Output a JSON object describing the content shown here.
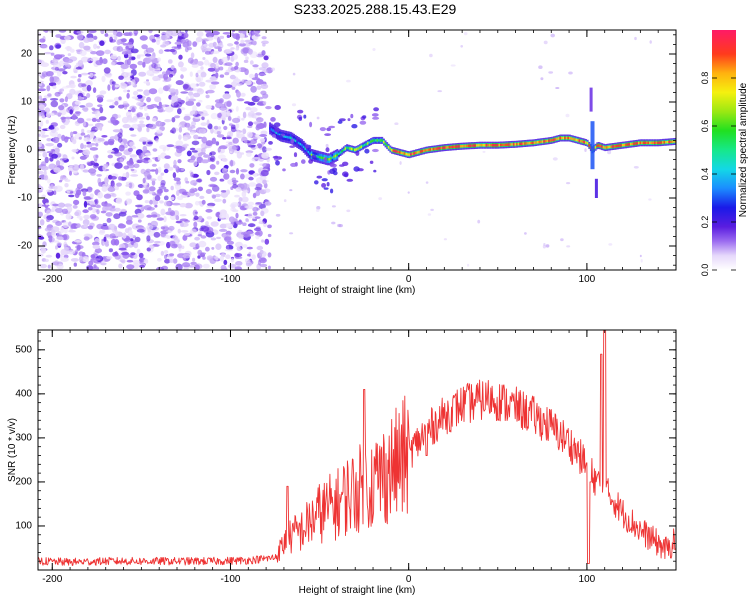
{
  "title": "S233.2025.288.15.43.E29",
  "colors": {
    "signal_line": "#ee3333",
    "speckle": "#7a2ee8",
    "frame": "#000000"
  },
  "chart_data": [
    {
      "type": "heatmap",
      "name": "spectrogram",
      "xlabel": "Height of straight line (km)",
      "ylabel": "Frequency (Hz)",
      "xlim": [
        -208,
        150
      ],
      "ylim": [
        -25,
        25
      ],
      "xticks": [
        -200,
        -100,
        0,
        100
      ],
      "xtick_labels": [
        "-200",
        "-100",
        "0",
        "100"
      ],
      "yticks": [
        20,
        10,
        0,
        -10,
        -20
      ],
      "ytick_labels": [
        "20",
        "10",
        "0",
        "-10",
        "-20"
      ],
      "noise_region_x": [
        -208,
        -78
      ],
      "carrier_trace": {
        "x": [
          -78,
          -72,
          -66,
          -60,
          -55,
          -50,
          -45,
          -40,
          -35,
          -30,
          -25,
          -20,
          -15,
          -10,
          -5,
          0,
          10,
          20,
          30,
          40,
          50,
          60,
          70,
          80,
          85,
          90,
          95,
          100,
          103,
          106,
          110,
          120,
          130,
          140,
          150
        ],
        "y": [
          4.5,
          3,
          2.5,
          1,
          -1,
          -1.5,
          -2,
          -1,
          0.5,
          0,
          1,
          2,
          2,
          0,
          -0.5,
          -1,
          0,
          0.5,
          0.8,
          1,
          1,
          1.2,
          1.5,
          2,
          2.5,
          2.5,
          2,
          1.5,
          0,
          1,
          0.5,
          1,
          1.5,
          1.5,
          1.8
        ]
      },
      "colorbar": {
        "label": "Normalized spectral amplitude",
        "range": [
          0,
          1
        ],
        "ticks": [
          0.0,
          0.2,
          0.4,
          0.6,
          0.8
        ],
        "tick_labels": [
          "0.0",
          "0.2",
          "0.4",
          "0.6",
          "0.8"
        ]
      }
    },
    {
      "type": "line",
      "name": "snr",
      "xlabel": "Height of straight line (km)",
      "ylabel": "SNR (10 * v/v)",
      "xlim": [
        -208,
        150
      ],
      "ylim": [
        0,
        545
      ],
      "xticks": [
        -200,
        -100,
        0,
        100
      ],
      "xtick_labels": [
        "-200",
        "-100",
        "0",
        "100"
      ],
      "yticks": [
        100,
        200,
        300,
        400,
        500
      ],
      "ytick_labels": [
        "100",
        "200",
        "300",
        "400",
        "500"
      ],
      "series": [
        {
          "name": "SNR",
          "x": [
            -208,
            -190,
            -170,
            -150,
            -130,
            -110,
            -90,
            -75,
            -70,
            -65,
            -60,
            -55,
            -50,
            -45,
            -40,
            -35,
            -30,
            -25,
            -20,
            -15,
            -10,
            -5,
            0,
            10,
            20,
            30,
            40,
            45,
            50,
            60,
            70,
            80,
            90,
            95,
            100,
            104,
            108,
            110,
            115,
            120,
            130,
            140,
            145,
            150
          ],
          "y": [
            20,
            18,
            20,
            20,
            20,
            20,
            22,
            28,
            60,
            80,
            90,
            110,
            130,
            140,
            150,
            170,
            180,
            190,
            200,
            215,
            230,
            245,
            265,
            315,
            350,
            375,
            385,
            390,
            385,
            370,
            350,
            325,
            290,
            265,
            235,
            210,
            190,
            180,
            160,
            130,
            90,
            60,
            45,
            70
          ]
        }
      ],
      "spikes": {
        "x": [
          -68,
          -25,
          10,
          102,
          108,
          110
        ],
        "y": [
          190,
          410,
          260,
          200,
          490,
          545
        ]
      }
    }
  ]
}
